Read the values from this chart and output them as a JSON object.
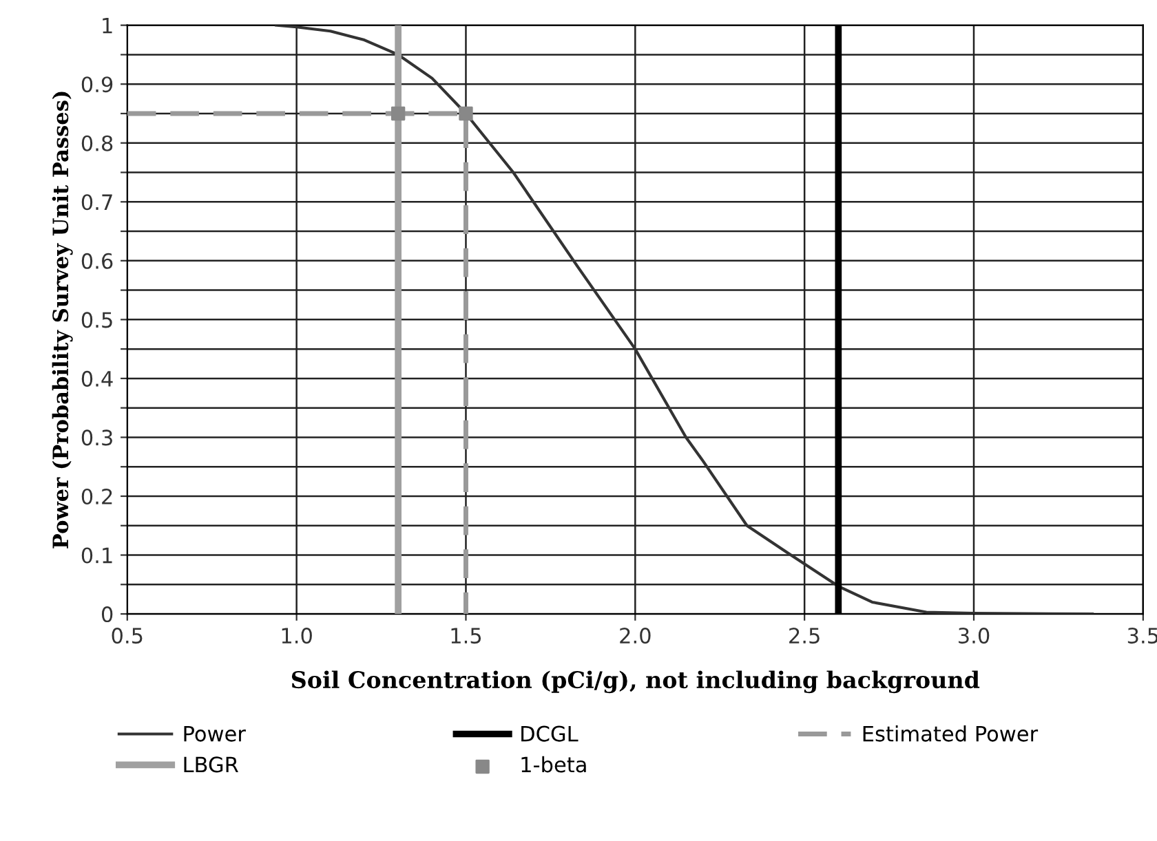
{
  "chart_data": {
    "type": "line",
    "xlabel": "Soil Concentration (pCi/g), not including background",
    "ylabel": "Power (Probability Survey Unit Passes)",
    "xlim": [
      0.5,
      3.5
    ],
    "ylim": [
      0,
      1
    ],
    "xticks": [
      0.5,
      {
        "value": 1,
        "label": "1.0"
      },
      1.5,
      {
        "value": 2,
        "label": "2.0"
      },
      2.5,
      {
        "value": 3,
        "label": "3.0"
      },
      3.5
    ],
    "yticks": [
      0,
      {
        "value": 0.05,
        "label": null
      },
      0.1,
      {
        "value": 0.15,
        "label": null
      },
      0.2,
      {
        "value": 0.25,
        "label": null
      },
      0.3,
      {
        "value": 0.35,
        "label": null
      },
      0.4,
      {
        "value": 0.45,
        "label": null
      },
      0.5,
      {
        "value": 0.55,
        "label": null
      },
      0.6,
      {
        "value": 0.65,
        "label": null
      },
      0.7,
      {
        "value": 0.75,
        "label": null
      },
      0.8,
      {
        "value": 0.85,
        "label": null
      },
      0.9,
      {
        "value": 0.95,
        "label": null
      },
      1
    ],
    "grid": true,
    "legend": "bottom",
    "series": [
      {
        "name": "Power",
        "color": "#333333",
        "x": [
          0.94,
          1.0,
          1.1,
          1.2,
          1.3,
          1.4,
          1.5,
          1.64,
          1.83,
          2.0,
          2.15,
          2.2,
          2.33,
          2.46,
          2.6,
          2.7,
          2.86,
          3.0,
          3.35
        ],
        "values": [
          1.0,
          0.997,
          0.99,
          0.975,
          0.95,
          0.91,
          0.85,
          0.75,
          0.59,
          0.45,
          0.3,
          0.26,
          0.15,
          0.1,
          0.047,
          0.02,
          0.003,
          0.001,
          0
        ]
      },
      {
        "name": "DCGL",
        "color": "#000000",
        "x": [
          2.6,
          2.6
        ],
        "values": [
          0,
          1
        ]
      },
      {
        "name": "Estimated Power",
        "line_style": "dashed",
        "color": "#999999",
        "x": [
          0.5,
          1.5,
          1.5
        ],
        "values": [
          0.85,
          0.85,
          0
        ]
      },
      {
        "name": "LBGR",
        "color": "#a0a0a0",
        "x": [
          1.3,
          1.3
        ],
        "values": [
          0,
          1
        ]
      },
      {
        "name": "1-beta",
        "type": "scatter",
        "marker": "square",
        "color": "#888888",
        "x": [
          1.3,
          1.5
        ],
        "values": [
          0.85,
          0.85
        ]
      }
    ]
  }
}
